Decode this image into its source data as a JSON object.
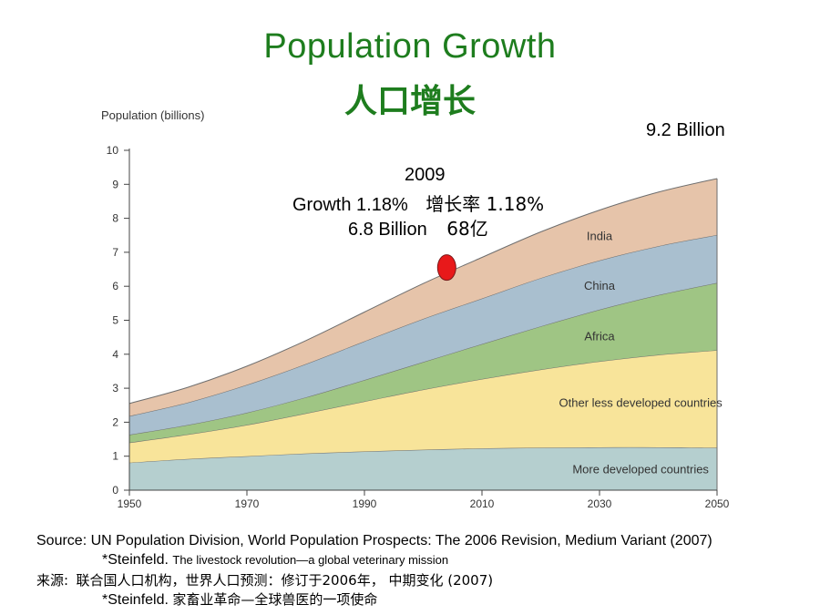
{
  "title": {
    "en": "Population Growth",
    "zh": "人口增长"
  },
  "annotations": {
    "total_2050": "9.2 Billion",
    "year": "2009",
    "growth": "Growth 1.18%",
    "growth_zh": "增长率 1.18%",
    "pop_now": "6.8 Billion",
    "pop_now_zh": "68亿"
  },
  "marker": {
    "x": 2004,
    "y": 6.55,
    "color": "#e8191a"
  },
  "chart_data": {
    "type": "area",
    "stacked": true,
    "ylabel": "Population (billions)",
    "xlabel": "",
    "xlim": [
      1950,
      2050
    ],
    "ylim": [
      0,
      10
    ],
    "x": [
      1950,
      1960,
      1970,
      1980,
      1990,
      2000,
      2010,
      2020,
      2030,
      2040,
      2050
    ],
    "x_ticks": [
      "1950",
      "1970",
      "1990",
      "2010",
      "2030",
      "2050"
    ],
    "y_ticks": [
      "0",
      "1",
      "2",
      "3",
      "4",
      "5",
      "6",
      "7",
      "8",
      "9",
      "10"
    ],
    "series": [
      {
        "name": "More developed countries",
        "color": "#b5cfcf",
        "values": [
          0.81,
          0.92,
          1.0,
          1.08,
          1.14,
          1.19,
          1.23,
          1.25,
          1.26,
          1.26,
          1.25
        ]
      },
      {
        "name": "Other less developed countries",
        "color": "#f8e49a",
        "values": [
          0.59,
          0.72,
          0.92,
          1.18,
          1.47,
          1.77,
          2.04,
          2.3,
          2.53,
          2.72,
          2.87
        ]
      },
      {
        "name": "Africa",
        "color": "#9fc584",
        "values": [
          0.23,
          0.28,
          0.36,
          0.47,
          0.63,
          0.81,
          1.03,
          1.27,
          1.52,
          1.76,
          1.98
        ]
      },
      {
        "name": "China",
        "color": "#a9bfcf",
        "values": [
          0.55,
          0.66,
          0.82,
          0.98,
          1.14,
          1.27,
          1.34,
          1.42,
          1.45,
          1.44,
          1.41
        ]
      },
      {
        "name": "India",
        "color": "#e6c4aa",
        "values": [
          0.37,
          0.45,
          0.55,
          0.69,
          0.86,
          1.04,
          1.21,
          1.36,
          1.48,
          1.59,
          1.66
        ]
      }
    ],
    "grid": false
  },
  "footer": {
    "source": "Source: UN Population Division, World Population Prospects: The 2006 Revision, Medium Variant (2007)",
    "ref_author": "*Steinfeld.",
    "ref_title": "The livestock revolution—a global veterinary mission",
    "source_zh_prefix": "来源:",
    "source_zh": "联合国人口机构，世界人口预测：修订于2006年， 中期变化 (2007)",
    "ref2_author": "*Steinfeld.",
    "ref2_title": "家畜业革命—全球兽医的一项使命"
  }
}
